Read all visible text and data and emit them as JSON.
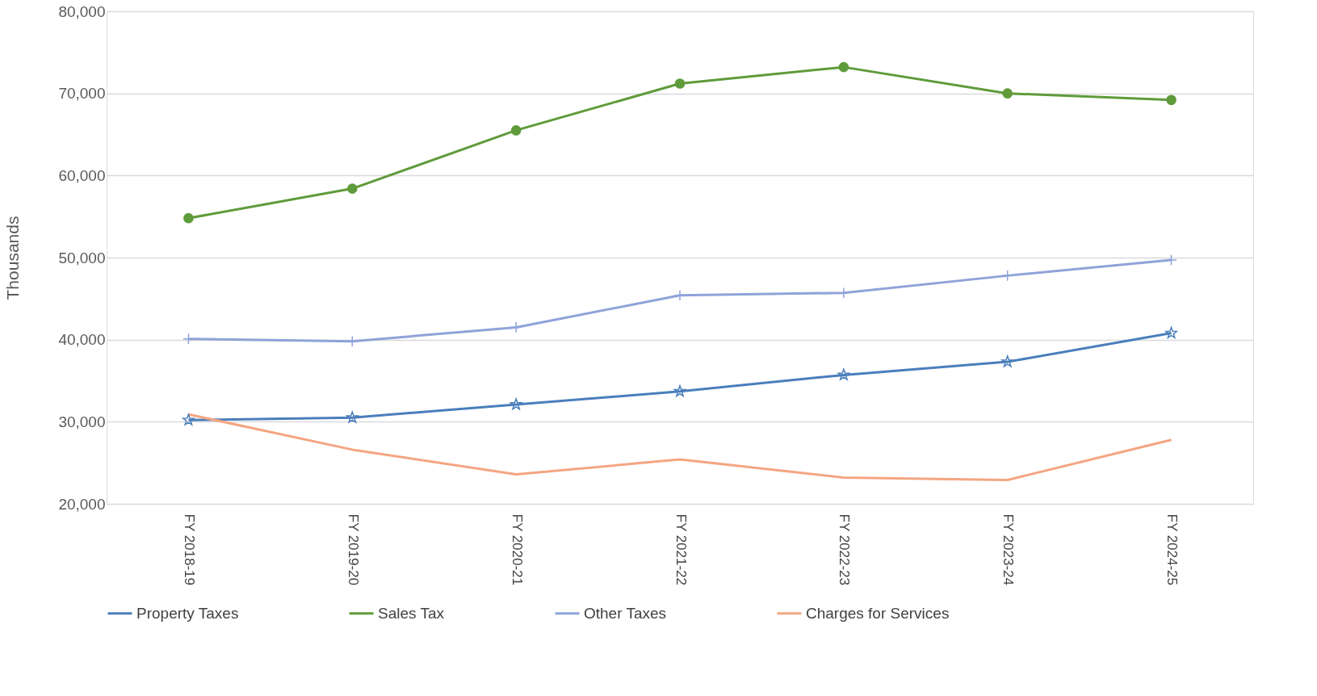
{
  "chart_data": {
    "type": "line",
    "ylabel": "Thousands",
    "categories": [
      "FY 2018-19",
      "FY 2019-20",
      "FY 2020-21",
      "FY 2021-22",
      "FY 2022-23",
      "FY 2023-24",
      "FY 2024-25"
    ],
    "series": [
      {
        "name": "Property Taxes",
        "color": "#4a7ebb",
        "marker": "star",
        "values": [
          30200,
          30500,
          32100,
          33700,
          35700,
          37300,
          40800
        ]
      },
      {
        "name": "Sales Tax",
        "color": "#5f9b3a",
        "marker": "circle",
        "values": [
          54800,
          58400,
          65500,
          71200,
          73200,
          70000,
          69200
        ]
      },
      {
        "name": "Other Taxes",
        "color": "#8fa3d9",
        "marker": "cross",
        "values": [
          40100,
          39800,
          41500,
          45400,
          45700,
          47800,
          49700
        ]
      },
      {
        "name": "Charges for Services",
        "color": "#f4a582",
        "marker": "none",
        "values": [
          30900,
          26600,
          23600,
          25400,
          23200,
          22900,
          27800
        ]
      }
    ],
    "ylim": [
      20000,
      80000
    ],
    "yticks": [
      {
        "value": 20000,
        "label": "20,000"
      },
      {
        "value": 30000,
        "label": "30,000"
      },
      {
        "value": 40000,
        "label": "40,000"
      },
      {
        "value": 50000,
        "label": "50,000"
      },
      {
        "value": 60000,
        "label": "60,000"
      },
      {
        "value": 70000,
        "label": "70,000"
      },
      {
        "value": 80000,
        "label": "80,000"
      }
    ],
    "grid": "y",
    "legend": "bottom"
  }
}
